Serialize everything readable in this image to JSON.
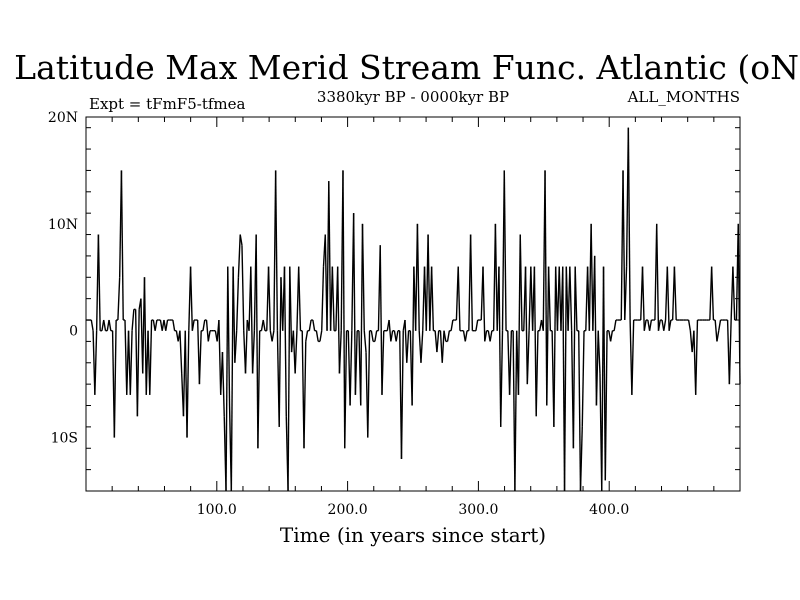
{
  "chart_data": {
    "type": "line",
    "title": "Latitude Max Merid Stream Func. Atlantic (oN)",
    "subtitle_left": "Expt = tFmF5-tfmea",
    "subtitle_center": "3380kyr BP - 0000kyr BP",
    "subtitle_right": "ALL_MONTHS",
    "xlabel": "Time (in years since start)",
    "ylabel": "",
    "xlim": [
      0,
      500
    ],
    "ylim": [
      -15,
      20
    ],
    "xticks": [
      {
        "value": 100,
        "label": "100.0"
      },
      {
        "value": 200,
        "label": "200.0"
      },
      {
        "value": 300,
        "label": "300.0"
      },
      {
        "value": 400,
        "label": "400.0"
      }
    ],
    "yticks": [
      {
        "value": 20,
        "label": "20N"
      },
      {
        "value": 10,
        "label": "10N"
      },
      {
        "value": 0,
        "label": "0"
      },
      {
        "value": -10,
        "label": "10S"
      }
    ],
    "grid": false,
    "legend": "none",
    "line_color": "#000000",
    "series": [
      {
        "values": [
          1,
          1,
          1,
          1,
          0,
          -6,
          0,
          9,
          0,
          0,
          1,
          0,
          0,
          1,
          0,
          0,
          -10,
          1,
          1,
          5,
          15,
          1,
          1,
          -6,
          0,
          -6,
          0,
          2,
          2,
          -8,
          2,
          3,
          -4,
          5,
          -6,
          0,
          -6,
          1,
          1,
          0,
          1,
          1,
          1,
          0,
          1,
          0,
          1,
          1,
          1,
          1,
          0,
          0,
          -1,
          0,
          -4,
          -8,
          0,
          -10,
          0,
          6,
          0,
          1,
          1,
          1,
          -5,
          0,
          0,
          1,
          1,
          -1,
          0,
          0,
          0,
          0,
          -1,
          1,
          -6,
          -2,
          -8,
          -15,
          6,
          -7,
          -15,
          6,
          -3,
          0,
          5,
          9,
          8,
          0,
          -4,
          1,
          0,
          6,
          -4,
          0,
          9,
          -11,
          0,
          0,
          1,
          0,
          0,
          6,
          0,
          -1,
          0,
          15,
          0,
          -9,
          5,
          0,
          6,
          -8,
          -15,
          6,
          -2,
          0,
          -4,
          0,
          6,
          0,
          0,
          -11,
          -1,
          0,
          0,
          1,
          1,
          0,
          0,
          -1,
          -1,
          0,
          6,
          9,
          0,
          14,
          0,
          6,
          0,
          0,
          6,
          -4,
          0,
          15,
          -11,
          0,
          0,
          -7,
          0,
          11,
          -6,
          0,
          0,
          -7,
          10,
          0,
          -2,
          -10,
          0,
          0,
          -1,
          -1,
          0,
          0,
          8,
          -6,
          0,
          0,
          0,
          1,
          -1,
          0,
          0,
          -1,
          0,
          0,
          -12,
          0,
          1,
          -3,
          0,
          0,
          -7,
          6,
          0,
          10,
          0,
          -3,
          0,
          6,
          0,
          9,
          0,
          6,
          0,
          0,
          -2,
          0,
          0,
          -3,
          0,
          -1,
          -1,
          0,
          0,
          1,
          1,
          1,
          6,
          0,
          0,
          0,
          -1,
          0,
          0,
          9,
          0,
          0,
          0,
          1,
          1,
          1,
          6,
          -1,
          0,
          0,
          -1,
          0,
          0,
          10,
          0,
          6,
          -9,
          0,
          15,
          0,
          0,
          -6,
          0,
          0,
          -15,
          0,
          -6,
          9,
          0,
          0,
          6,
          -5,
          0,
          6,
          0,
          6,
          -8,
          0,
          0,
          1,
          0,
          15,
          -7,
          6,
          0,
          0,
          -9,
          6,
          0,
          6,
          0,
          6,
          -15,
          6,
          0,
          6,
          0,
          -11,
          6,
          0,
          0,
          -15,
          -9,
          0,
          0,
          6,
          0,
          10,
          0,
          7,
          -7,
          0,
          -4,
          -15,
          6,
          -14,
          0,
          0,
          -1,
          0,
          0,
          1,
          1,
          1,
          1,
          15,
          1,
          6,
          19,
          1,
          -6,
          1,
          1,
          1,
          1,
          1,
          6,
          0,
          1,
          1,
          0,
          1,
          1,
          1,
          10,
          0,
          1,
          1,
          0,
          1,
          6,
          0,
          1,
          1,
          6,
          1,
          1,
          1,
          1,
          1,
          1,
          1,
          1,
          0,
          -2,
          0,
          -6,
          1,
          1,
          1,
          1,
          1,
          1,
          1,
          1,
          6,
          1,
          1,
          -1,
          0,
          1,
          1,
          1,
          1,
          1,
          -5,
          1,
          6,
          1,
          1,
          10,
          -5
        ]
      }
    ]
  }
}
